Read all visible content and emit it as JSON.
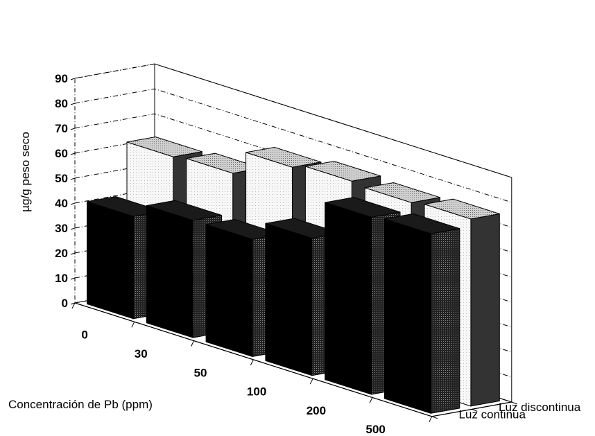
{
  "chart_data": {
    "type": "bar",
    "subtype": "3d-clustered-depth",
    "title": "",
    "xlabel": "Concentración de Pb (ppm)",
    "ylabel": "µg/g peso seco",
    "ylim": [
      0,
      90
    ],
    "yticks": [
      "0",
      "10",
      "20",
      "30",
      "40",
      "50",
      "60",
      "70",
      "80",
      "90"
    ],
    "categories": [
      "0",
      "30",
      "50",
      "100",
      "200",
      "500"
    ],
    "series": [
      {
        "name": "Luz continua",
        "values": [
          41,
          47,
          47,
          55,
          71,
          72
        ]
      },
      {
        "name": "Luz discontinua",
        "values": [
          62,
          63,
          73,
          75,
          74,
          75
        ]
      }
    ],
    "grid": true
  },
  "colors": {
    "front_series": "#000000",
    "back_series_front_face": "#f6f6f6",
    "back_series_top_face": "#b8b8b8",
    "back_series_side_face": "#404040",
    "grid": "#000000"
  }
}
